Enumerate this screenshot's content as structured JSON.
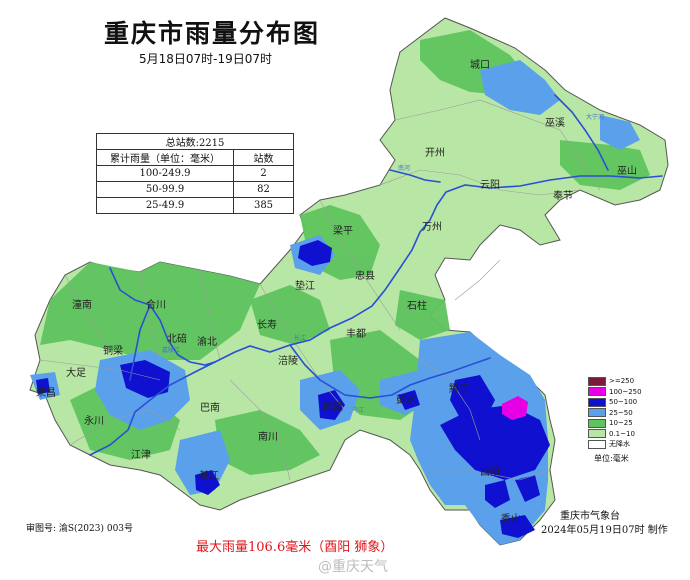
{
  "title": "重庆市雨量分布图",
  "subtitle": "5月18日07时-19日07时",
  "stats": {
    "total_label": "总站数:2215",
    "col_range": "累计雨量（单位：毫米）",
    "col_count": "站数",
    "rows": [
      {
        "range": "100-249.9",
        "count": "2"
      },
      {
        "range": "50-99.9",
        "count": "82"
      },
      {
        "range": "25-49.9",
        "count": "385"
      }
    ]
  },
  "legend": {
    "items": [
      {
        "label": ">=250",
        "color": "#7a1b3c"
      },
      {
        "label": "100~250",
        "color": "#e600e6"
      },
      {
        "label": "50~100",
        "color": "#1010d0"
      },
      {
        "label": "25~50",
        "color": "#5aa0ea"
      },
      {
        "label": "10~25",
        "color": "#5ec45e"
      },
      {
        "label": "0.1~10",
        "color": "#b8e6a4"
      },
      {
        "label": "无降水",
        "color": "#ffffff"
      }
    ],
    "unit": "单位:毫米"
  },
  "max_note": "最大雨量106.6毫米（酉阳 狮象）",
  "agency": "重庆市气象台",
  "made": "2024年05月19日07时 制作",
  "map_no": "审图号: 渝S(2023) 003号",
  "watermark": "@重庆天气",
  "districts": [
    {
      "name": "城口"
    },
    {
      "name": "巫溪"
    },
    {
      "name": "开州"
    },
    {
      "name": "云阳"
    },
    {
      "name": "巫山"
    },
    {
      "name": "奉节"
    },
    {
      "name": "万州"
    },
    {
      "name": "梁平"
    },
    {
      "name": "忠县"
    },
    {
      "name": "垫江"
    },
    {
      "name": "石柱"
    },
    {
      "name": "潼南"
    },
    {
      "name": "合川"
    },
    {
      "name": "长寿"
    },
    {
      "name": "北碚"
    },
    {
      "name": "渝北"
    },
    {
      "name": "丰都"
    },
    {
      "name": "铜梁"
    },
    {
      "name": "大足"
    },
    {
      "name": "涪陵"
    },
    {
      "name": "荣昌"
    },
    {
      "name": "永川"
    },
    {
      "name": "巴南"
    },
    {
      "name": "彭水"
    },
    {
      "name": "武隆"
    },
    {
      "name": "南川"
    },
    {
      "name": "江津"
    },
    {
      "name": "黔江"
    },
    {
      "name": "酉阳"
    },
    {
      "name": "秀山"
    },
    {
      "name": "綦江"
    }
  ],
  "rivers": [
    {
      "name": "大宁河"
    },
    {
      "name": "南河"
    },
    {
      "name": "长江"
    },
    {
      "name": "嘉陵江"
    },
    {
      "name": "乌江"
    }
  ]
}
